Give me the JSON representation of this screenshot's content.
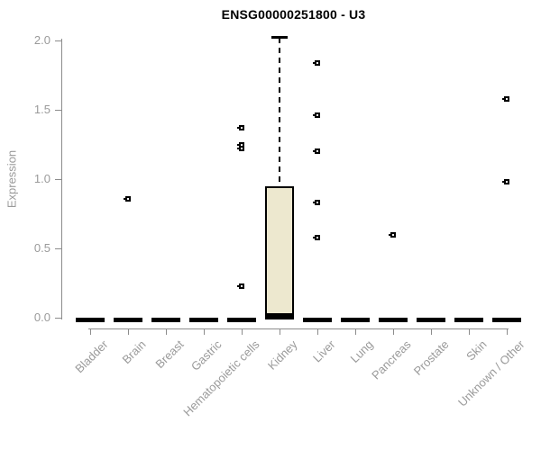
{
  "header": {
    "title": "ENSG00000251800 - U3"
  },
  "colors": {
    "title": "#000000",
    "axis_line": "#8c8c8c",
    "tick_label": "#9a9a9a",
    "box_fill": "#ede8cf",
    "box_border": "#000000",
    "median": "#000000",
    "outlier": "#000000"
  },
  "chart_data": {
    "type": "boxplot",
    "title": "ENSG00000251800 - U3",
    "xlabel": "",
    "ylabel": "Expression",
    "ylim": [
      0.0,
      2.0
    ],
    "yticks": [
      0.0,
      0.5,
      1.0,
      1.5,
      2.0
    ],
    "grid": false,
    "legend": "none",
    "categories": [
      "Bladder",
      "Brain",
      "Breast",
      "Gastric",
      "Hematopoietic cells",
      "Kidney",
      "Liver",
      "Lung",
      "Pancreas",
      "Prostate",
      "Skin",
      "Unknown / Other"
    ],
    "series": [
      {
        "category": "Bladder",
        "median": 0.0,
        "q1": 0.0,
        "q3": 0.0,
        "whisker_low": 0.0,
        "whisker_high": 0.0,
        "outliers": []
      },
      {
        "category": "Brain",
        "median": 0.0,
        "q1": 0.0,
        "q3": 0.0,
        "whisker_low": 0.0,
        "whisker_high": 0.0,
        "outliers": [
          0.86
        ]
      },
      {
        "category": "Breast",
        "median": 0.0,
        "q1": 0.0,
        "q3": 0.0,
        "whisker_low": 0.0,
        "whisker_high": 0.0,
        "outliers": []
      },
      {
        "category": "Gastric",
        "median": 0.0,
        "q1": 0.0,
        "q3": 0.0,
        "whisker_low": 0.0,
        "whisker_high": 0.0,
        "outliers": []
      },
      {
        "category": "Hematopoietic cells",
        "median": 0.0,
        "q1": 0.0,
        "q3": 0.0,
        "whisker_low": 0.0,
        "whisker_high": 0.0,
        "outliers": [
          1.37,
          1.25,
          1.22,
          0.23
        ]
      },
      {
        "category": "Kidney",
        "median": 0.02,
        "q1": 0.02,
        "q3": 0.95,
        "whisker_low": 0.02,
        "whisker_high": 2.02,
        "outliers": []
      },
      {
        "category": "Liver",
        "median": 0.0,
        "q1": 0.0,
        "q3": 0.0,
        "whisker_low": 0.0,
        "whisker_high": 0.0,
        "outliers": [
          1.84,
          1.46,
          1.2,
          0.83,
          0.58
        ]
      },
      {
        "category": "Lung",
        "median": 0.0,
        "q1": 0.0,
        "q3": 0.0,
        "whisker_low": 0.0,
        "whisker_high": 0.0,
        "outliers": []
      },
      {
        "category": "Pancreas",
        "median": 0.0,
        "q1": 0.0,
        "q3": 0.0,
        "whisker_low": 0.0,
        "whisker_high": 0.0,
        "outliers": [
          0.6
        ]
      },
      {
        "category": "Prostate",
        "median": 0.0,
        "q1": 0.0,
        "q3": 0.0,
        "whisker_low": 0.0,
        "whisker_high": 0.0,
        "outliers": []
      },
      {
        "category": "Skin",
        "median": 0.0,
        "q1": 0.0,
        "q3": 0.0,
        "whisker_low": 0.0,
        "whisker_high": 0.0,
        "outliers": []
      },
      {
        "category": "Unknown / Other",
        "median": 0.0,
        "q1": 0.0,
        "q3": 0.0,
        "whisker_low": 0.0,
        "whisker_high": 0.0,
        "outliers": [
          1.58,
          0.98
        ]
      }
    ]
  }
}
